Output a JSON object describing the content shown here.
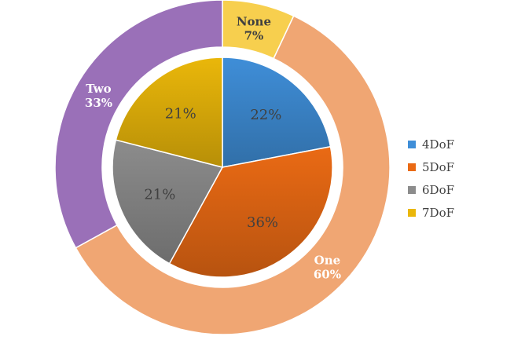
{
  "chart_data": [
    {
      "type": "pie",
      "ring": "inner",
      "series": [
        {
          "name": "4DoF",
          "value": 22,
          "label": "22%",
          "color": "#3f8ed8"
        },
        {
          "name": "5DoF",
          "value": 36,
          "label": "36%",
          "color": "#ea6a14"
        },
        {
          "name": "6DoF",
          "value": 21,
          "label": "21%",
          "color": "#8c8c8c"
        },
        {
          "name": "7DoF",
          "value": 21,
          "label": "21%",
          "color": "#eab70a"
        }
      ],
      "legend_position": "right"
    },
    {
      "type": "pie",
      "ring": "outer",
      "series": [
        {
          "name": "None",
          "value": 7,
          "label": "7%",
          "color": "#f7cf4e"
        },
        {
          "name": "One",
          "value": 60,
          "label": "60%",
          "color": "#f0a673"
        },
        {
          "name": "Two",
          "value": 33,
          "label": "33%",
          "color": "#9a70b8"
        }
      ]
    }
  ]
}
